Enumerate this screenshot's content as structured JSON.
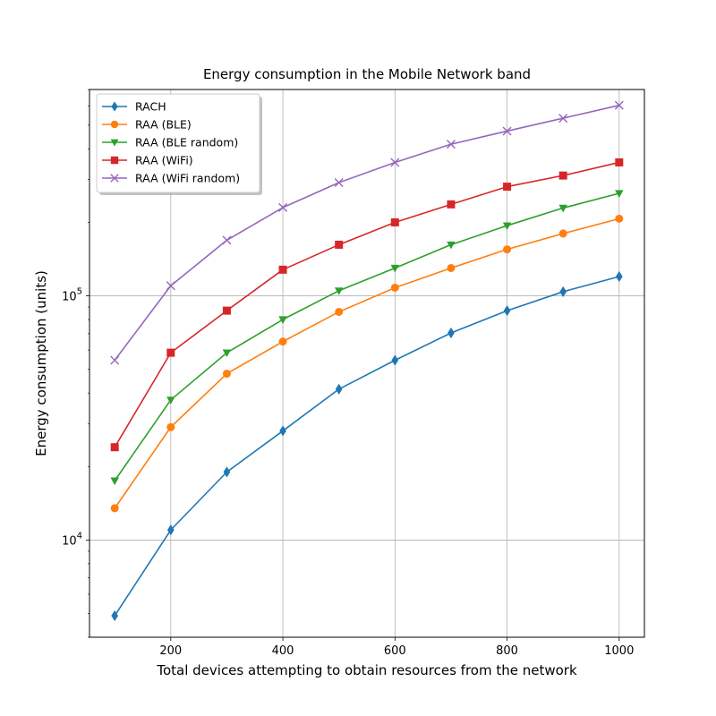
{
  "chart_data": {
    "type": "line",
    "title": "Energy consumption in the Mobile Network band",
    "xlabel": "Total devices attempting to obtain resources from the network",
    "ylabel": "Energy consumption (units)",
    "x": [
      100,
      200,
      300,
      400,
      500,
      600,
      700,
      800,
      900,
      1000
    ],
    "xlim": [
      55,
      1045
    ],
    "ylim": [
      4000,
      700000
    ],
    "yscale": "log",
    "grid": true,
    "legend_position": "upper-left",
    "x_ticks": [
      {
        "value": 200,
        "label": "200"
      },
      {
        "value": 400,
        "label": "400"
      },
      {
        "value": 600,
        "label": "600"
      },
      {
        "value": 800,
        "label": "800"
      },
      {
        "value": 1000,
        "label": "1000"
      }
    ],
    "y_ticks": [
      {
        "value": 10000,
        "base": "10",
        "exp": "4"
      },
      {
        "value": 100000,
        "base": "10",
        "exp": "5"
      }
    ],
    "series": [
      {
        "name": "RACH",
        "color": "#1f77b4",
        "marker": "diamond",
        "values": [
          4900,
          11000,
          19000,
          28000,
          41500,
          54500,
          70500,
          87000,
          104000,
          120000
        ]
      },
      {
        "name": "RAA (BLE)",
        "color": "#ff7f0e",
        "marker": "circle",
        "values": [
          13500,
          29000,
          48000,
          65000,
          86000,
          108000,
          130000,
          155000,
          180000,
          207000
        ]
      },
      {
        "name": "RAA (BLE random)",
        "color": "#2ca02c",
        "marker": "triangle-down",
        "values": [
          17500,
          37500,
          58500,
          80000,
          105000,
          130000,
          162000,
          194000,
          229000,
          263000
        ]
      },
      {
        "name": "RAA (WiFi)",
        "color": "#d62728",
        "marker": "square",
        "values": [
          24000,
          58500,
          87000,
          128000,
          162000,
          200000,
          237000,
          280000,
          311000,
          352000
        ]
      },
      {
        "name": "RAA (WiFi random)",
        "color": "#9467bd",
        "marker": "x",
        "values": [
          54500,
          110000,
          169000,
          230000,
          291000,
          352000,
          418000,
          473000,
          534000,
          603000
        ]
      }
    ]
  }
}
